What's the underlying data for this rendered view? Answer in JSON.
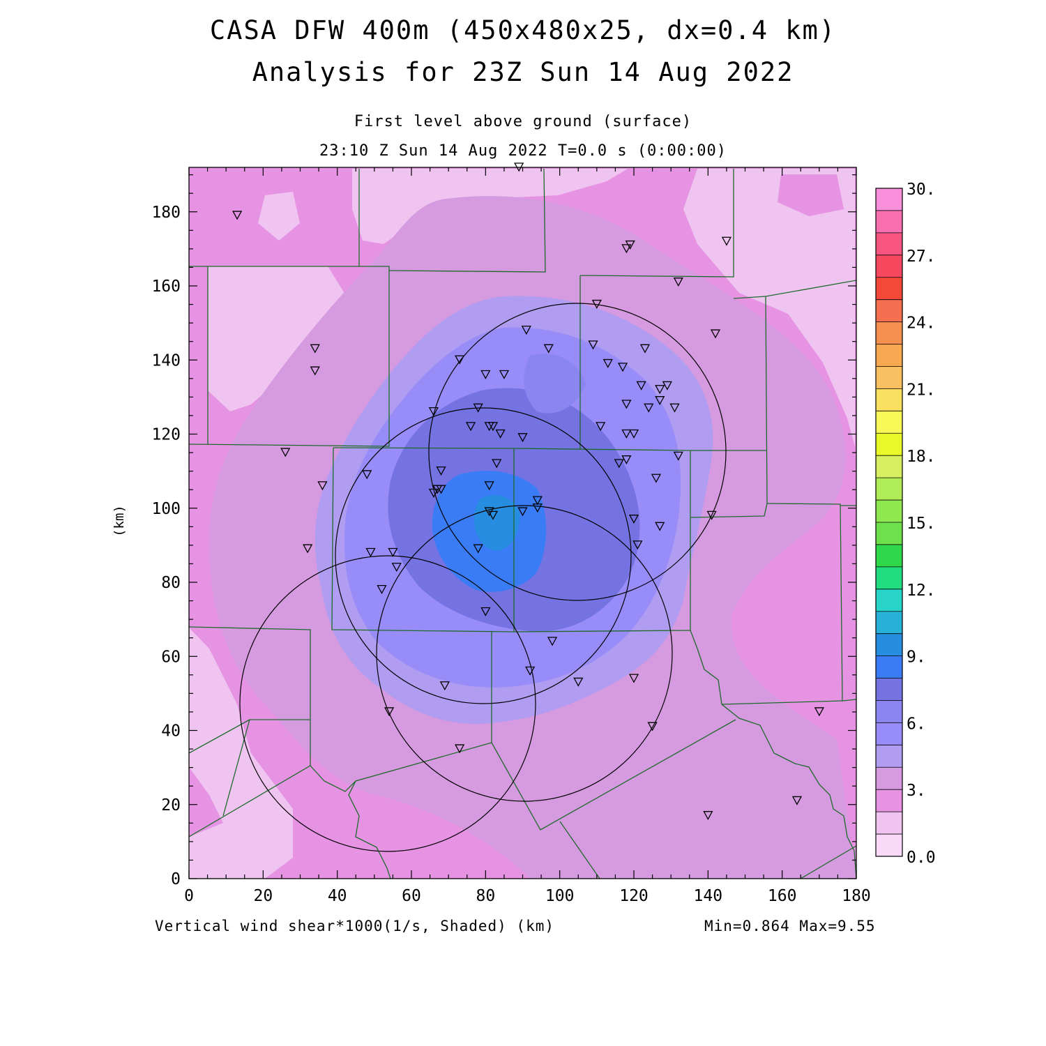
{
  "header": {
    "title_line1": "CASA DFW 400m (450x480x25, dx=0.4 km)",
    "title_line2": "Analysis for 23Z Sun 14 Aug 2022",
    "level": "First level above ground (surface)",
    "valid_time": "23:10 Z Sun 14 Aug 2022   T=0.0 s (0:00:00)"
  },
  "axes": {
    "x_ticks": [
      "0",
      "20",
      "40",
      "60",
      "80",
      "100",
      "120",
      "140",
      "160",
      "180"
    ],
    "y_ticks": [
      "0",
      "20",
      "40",
      "60",
      "80",
      "100",
      "120",
      "140",
      "160",
      "180"
    ],
    "y_label": "(km)",
    "x_range": [
      0,
      180
    ],
    "y_range": [
      0,
      192
    ]
  },
  "footer": {
    "field_label": "Vertical wind shear*1000(1/s, Shaded)  (km)",
    "minmax": "Min=0.864 Max=9.55"
  },
  "colorbar": {
    "labels": [
      "30.",
      "27.",
      "24.",
      "21.",
      "18.",
      "15.",
      "12.",
      "9.",
      "6.",
      "3.",
      "0.0"
    ],
    "colors_bottom_to_top": [
      "#f9d8f8",
      "#f0c4f0",
      "#e693e4",
      "#d69ae0",
      "#b09cf0",
      "#978cf8",
      "#8a85ef",
      "#7572e2",
      "#3a7cf5",
      "#278de0",
      "#27b0d8",
      "#28d4c8",
      "#22dc80",
      "#2fd84a",
      "#6ee04c",
      "#90e850",
      "#b0ec58",
      "#d6ee60",
      "#e8f828",
      "#f8f858",
      "#fae060",
      "#f8c060",
      "#f8a850",
      "#f59050",
      "#f47050",
      "#f44838",
      "#f84860",
      "#f85480",
      "#f870b0",
      "#f890dc"
    ]
  },
  "map_colors": {
    "lightest": "#f0c4f0",
    "light": "#e693e4",
    "medium": "#d69ae0",
    "lavender": "#b09cf0",
    "periwinkle": "#978cf8",
    "slate": "#7572e2",
    "blue": "#3a7cf5",
    "teal": "#278de0",
    "county_lines": "#1e6a2a"
  },
  "markers": "station-triangle",
  "chart_data": {
    "type": "heatmap",
    "title": "CASA DFW 400m (450x480x25, dx=0.4 km)",
    "variable": "Vertical wind shear*1000(1/s, Shaded)",
    "min": 0.864,
    "max": 9.55,
    "colorbar_range": [
      0.0,
      30.0
    ],
    "xlabel": "",
    "ylabel": "(km)",
    "xlim": [
      0,
      180
    ],
    "ylim": [
      0,
      192
    ],
    "radar_rings": [
      {
        "center": [
          105,
          117
        ],
        "radius_km": 40
      },
      {
        "center": [
          79,
          87
        ],
        "radius_km": 40
      },
      {
        "center": [
          91,
          63
        ],
        "radius_km": 40
      },
      {
        "center": [
          54,
          50
        ],
        "radius_km": 40
      }
    ],
    "stations": [
      [
        13,
        179
      ],
      [
        89,
        192
      ],
      [
        118,
        170
      ],
      [
        119,
        171
      ],
      [
        145,
        172
      ],
      [
        132,
        161
      ],
      [
        142,
        147
      ],
      [
        34,
        143
      ],
      [
        34,
        137
      ],
      [
        110,
        155
      ],
      [
        91,
        148
      ],
      [
        97,
        143
      ],
      [
        109,
        144
      ],
      [
        123,
        143
      ],
      [
        73,
        140
      ],
      [
        113,
        139
      ],
      [
        117,
        138
      ],
      [
        80,
        136
      ],
      [
        85,
        136
      ],
      [
        122,
        133
      ],
      [
        129,
        133
      ],
      [
        127,
        132
      ],
      [
        127,
        129
      ],
      [
        131,
        127
      ],
      [
        118,
        128
      ],
      [
        124,
        127
      ],
      [
        78,
        127
      ],
      [
        66,
        126
      ],
      [
        76,
        122
      ],
      [
        81,
        122
      ],
      [
        82,
        122
      ],
      [
        111,
        122
      ],
      [
        84,
        120
      ],
      [
        90,
        119
      ],
      [
        118,
        120
      ],
      [
        120,
        120
      ],
      [
        26,
        115
      ],
      [
        132,
        114
      ],
      [
        118,
        113
      ],
      [
        83,
        112
      ],
      [
        116,
        112
      ],
      [
        68,
        110
      ],
      [
        48,
        109
      ],
      [
        126,
        108
      ],
      [
        36,
        106
      ],
      [
        81,
        106
      ],
      [
        67,
        105
      ],
      [
        68,
        105
      ],
      [
        66,
        104
      ],
      [
        94,
        102
      ],
      [
        94,
        100
      ],
      [
        90,
        99
      ],
      [
        81,
        99
      ],
      [
        82,
        98
      ],
      [
        120,
        97
      ],
      [
        141,
        98
      ],
      [
        127,
        95
      ],
      [
        32,
        89
      ],
      [
        78,
        89
      ],
      [
        121,
        90
      ],
      [
        49,
        88
      ],
      [
        55,
        88
      ],
      [
        56,
        84
      ],
      [
        52,
        78
      ],
      [
        80,
        72
      ],
      [
        98,
        64
      ],
      [
        92,
        56
      ],
      [
        120,
        54
      ],
      [
        105,
        53
      ],
      [
        69,
        52
      ],
      [
        54,
        45
      ],
      [
        125,
        41
      ],
      [
        73,
        35
      ],
      [
        170,
        45
      ],
      [
        164,
        21
      ],
      [
        140,
        17
      ]
    ]
  }
}
